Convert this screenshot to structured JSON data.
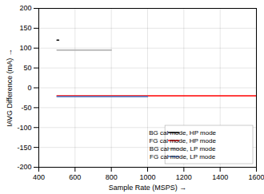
{
  "chart_data": {
    "type": "line",
    "xlabel": "Sample Rate (MSPS)",
    "ylabel": "IAVG Difference (mA)",
    "series": [
      {
        "name": "BG cal mode, HP mode",
        "color": "#000000",
        "x": [
          500,
          510
        ],
        "values": [
          120,
          120
        ]
      },
      {
        "name": "FG cal mode, HP mode",
        "color": "#ff0000",
        "x": [
          500,
          1600
        ],
        "values": [
          -20,
          -20
        ]
      },
      {
        "name": "BG cal mode, LP mode",
        "color": "#aaaaaa",
        "x": [
          500,
          800
        ],
        "values": [
          95,
          95
        ]
      },
      {
        "name": "FG cal mode, LP mode",
        "color": "#4472c4",
        "x": [
          500,
          1000
        ],
        "values": [
          -22,
          -22
        ]
      }
    ],
    "xlim": [
      400,
      1600
    ],
    "ylim": [
      -200,
      200
    ],
    "xticks": [
      400,
      600,
      800,
      1000,
      1200,
      1400,
      1600
    ],
    "yticks": [
      -200,
      -150,
      -100,
      -50,
      0,
      50,
      100,
      150,
      200
    ],
    "grid": true,
    "legend": "lower right"
  }
}
